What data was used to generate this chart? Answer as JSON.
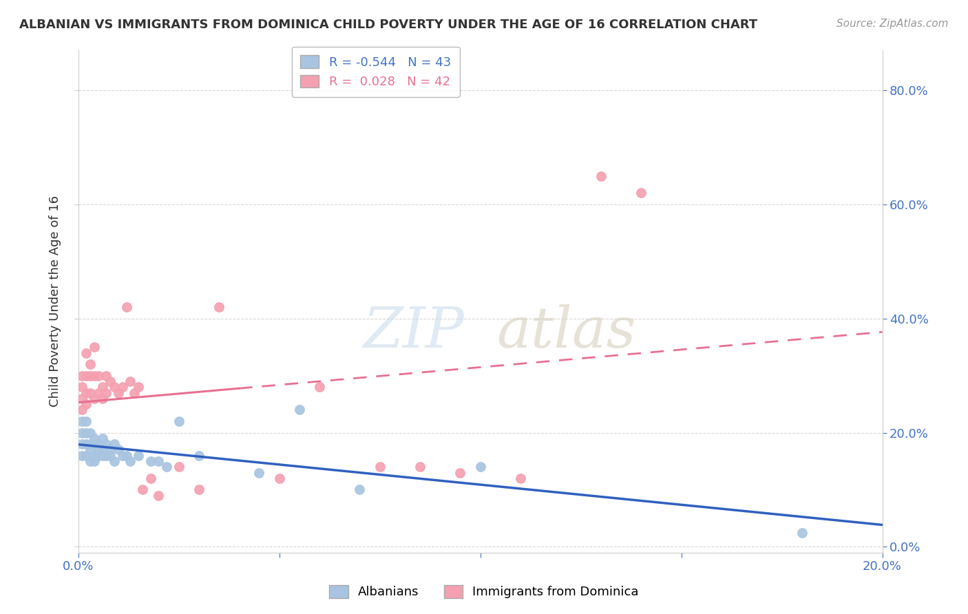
{
  "title": "ALBANIAN VS IMMIGRANTS FROM DOMINICA CHILD POVERTY UNDER THE AGE OF 16 CORRELATION CHART",
  "source": "Source: ZipAtlas.com",
  "ylabel": "Child Poverty Under the Age of 16",
  "xlim": [
    0.0,
    0.2
  ],
  "ylim": [
    -0.01,
    0.87
  ],
  "albanian_color": "#a8c4e0",
  "dominica_color": "#f4a0b0",
  "albanian_line_color": "#3060c0",
  "dominica_line_color": "#e87090",
  "R_albanian": -0.544,
  "N_albanian": 43,
  "R_dominica": 0.028,
  "N_dominica": 42,
  "background_color": "#ffffff",
  "grid_color": "#d8d8d8",
  "albanian_x": [
    0.001,
    0.001,
    0.001,
    0.001,
    0.002,
    0.002,
    0.002,
    0.002,
    0.003,
    0.003,
    0.003,
    0.003,
    0.004,
    0.004,
    0.004,
    0.004,
    0.005,
    0.005,
    0.005,
    0.006,
    0.006,
    0.006,
    0.007,
    0.007,
    0.008,
    0.008,
    0.009,
    0.009,
    0.01,
    0.011,
    0.012,
    0.013,
    0.015,
    0.018,
    0.02,
    0.022,
    0.025,
    0.03,
    0.045,
    0.055,
    0.07,
    0.1,
    0.18
  ],
  "albanian_y": [
    0.22,
    0.2,
    0.18,
    0.16,
    0.22,
    0.2,
    0.18,
    0.16,
    0.2,
    0.18,
    0.17,
    0.15,
    0.19,
    0.18,
    0.16,
    0.15,
    0.18,
    0.17,
    0.16,
    0.19,
    0.17,
    0.16,
    0.18,
    0.16,
    0.17,
    0.16,
    0.18,
    0.15,
    0.17,
    0.16,
    0.16,
    0.15,
    0.16,
    0.15,
    0.15,
    0.14,
    0.22,
    0.16,
    0.13,
    0.24,
    0.1,
    0.14,
    0.025
  ],
  "dominica_x": [
    0.001,
    0.001,
    0.001,
    0.001,
    0.002,
    0.002,
    0.002,
    0.002,
    0.003,
    0.003,
    0.003,
    0.004,
    0.004,
    0.004,
    0.005,
    0.005,
    0.006,
    0.006,
    0.007,
    0.007,
    0.008,
    0.009,
    0.01,
    0.011,
    0.012,
    0.013,
    0.014,
    0.015,
    0.016,
    0.018,
    0.02,
    0.025,
    0.03,
    0.035,
    0.05,
    0.06,
    0.075,
    0.085,
    0.095,
    0.11,
    0.13,
    0.14
  ],
  "dominica_y": [
    0.3,
    0.28,
    0.26,
    0.24,
    0.34,
    0.3,
    0.27,
    0.25,
    0.32,
    0.3,
    0.27,
    0.35,
    0.3,
    0.26,
    0.3,
    0.27,
    0.28,
    0.26,
    0.3,
    0.27,
    0.29,
    0.28,
    0.27,
    0.28,
    0.42,
    0.29,
    0.27,
    0.28,
    0.1,
    0.12,
    0.09,
    0.14,
    0.1,
    0.42,
    0.12,
    0.28,
    0.14,
    0.14,
    0.13,
    0.12,
    0.65,
    0.62
  ]
}
